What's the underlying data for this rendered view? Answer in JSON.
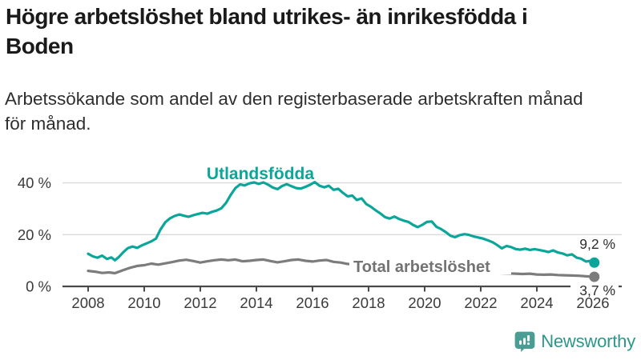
{
  "header": {
    "title": "Högre arbetslöshet bland utrikes- än inrikesfödda i\nBoden",
    "subtitle": "Arbetssökande som andel av den registerbaserade arbetskraften månad\nför månad."
  },
  "branding": {
    "logo_text": "Newsworthy",
    "logo_icon": "bar-chart-speech-bubble-icon",
    "logo_text_color": "#2d968b",
    "logo_icon_color": "#4a9d92"
  },
  "colors": {
    "teal_series": "#0ba699",
    "gray_series": "#7c7c7c",
    "gray_label": "#737373",
    "gridline": "#dadada",
    "axis": "#4a4a4a",
    "tick_text": "#3a3a3a",
    "value_label_text": "#2e2e2e"
  },
  "chart_data": {
    "type": "line",
    "title": "Högre arbetslöshet bland utrikes- än inrikesfödda i Boden",
    "subtitle": "Arbetssökande som andel av den registerbaserade arbetskraften månad för månad.",
    "xlabel": "",
    "ylabel": "",
    "grid": "horizontal",
    "legend_position": "inline-labels",
    "xlim": [
      2007.1,
      2027.1
    ],
    "ylim": [
      0,
      45
    ],
    "x_ticks": [
      2008,
      2010,
      2012,
      2014,
      2016,
      2018,
      2020,
      2022,
      2024,
      2026
    ],
    "x_tick_labels": [
      "2008",
      "2010",
      "2012",
      "2014",
      "2016",
      "2018",
      "2020",
      "2022",
      "2024",
      "2026"
    ],
    "y_ticks": [
      0,
      20,
      40
    ],
    "y_tick_labels": [
      "0 %",
      "20 %",
      "40 %"
    ],
    "series": [
      {
        "name": "Total arbetslöshet",
        "color": "#7c7c7c",
        "end_value": 3.7,
        "end_label": "3,7 %",
        "points": [
          [
            2008.0,
            6.0
          ],
          [
            2008.25,
            5.7
          ],
          [
            2008.5,
            5.2
          ],
          [
            2008.75,
            5.4
          ],
          [
            2008.95,
            5.1
          ],
          [
            2009.08,
            5.6
          ],
          [
            2009.25,
            6.3
          ],
          [
            2009.5,
            7.2
          ],
          [
            2009.75,
            7.9
          ],
          [
            2010.0,
            8.2
          ],
          [
            2010.25,
            8.8
          ],
          [
            2010.5,
            8.4
          ],
          [
            2010.75,
            8.9
          ],
          [
            2011.0,
            9.4
          ],
          [
            2011.25,
            10.0
          ],
          [
            2011.5,
            10.3
          ],
          [
            2011.75,
            9.8
          ],
          [
            2012.0,
            9.2
          ],
          [
            2012.25,
            9.7
          ],
          [
            2012.5,
            10.1
          ],
          [
            2012.75,
            10.4
          ],
          [
            2013.0,
            10.1
          ],
          [
            2013.25,
            10.4
          ],
          [
            2013.5,
            9.7
          ],
          [
            2013.75,
            9.9
          ],
          [
            2014.0,
            10.2
          ],
          [
            2014.25,
            10.4
          ],
          [
            2014.5,
            9.8
          ],
          [
            2014.75,
            9.3
          ],
          [
            2015.0,
            9.7
          ],
          [
            2015.25,
            10.2
          ],
          [
            2015.5,
            10.4
          ],
          [
            2015.75,
            9.9
          ],
          [
            2016.0,
            9.6
          ],
          [
            2016.25,
            10.0
          ],
          [
            2016.5,
            10.2
          ],
          [
            2016.75,
            9.5
          ],
          [
            2017.0,
            9.2
          ],
          [
            2017.25,
            8.7
          ],
          [
            2017.5,
            8.4
          ],
          [
            2017.75,
            8.7
          ],
          [
            2018.0,
            8.3
          ],
          [
            2018.25,
            8.0
          ],
          [
            2018.5,
            7.7
          ],
          [
            2018.75,
            7.4
          ],
          [
            2019.0,
            7.2
          ],
          [
            2019.25,
            7.0
          ],
          [
            2019.5,
            6.9
          ],
          [
            2019.75,
            7.1
          ],
          [
            2020.0,
            7.6
          ],
          [
            2020.25,
            8.1
          ],
          [
            2020.5,
            7.8
          ],
          [
            2020.75,
            7.4
          ],
          [
            2021.0,
            7.0
          ],
          [
            2021.25,
            6.6
          ],
          [
            2021.5,
            6.2
          ],
          [
            2021.75,
            5.9
          ],
          [
            2022.0,
            5.6
          ],
          [
            2022.25,
            5.4
          ],
          [
            2022.5,
            5.2
          ],
          [
            2022.75,
            5.1
          ],
          [
            2023.0,
            5.0
          ],
          [
            2023.25,
            4.9
          ],
          [
            2023.5,
            4.8
          ],
          [
            2023.75,
            4.9
          ],
          [
            2024.0,
            4.6
          ],
          [
            2024.25,
            4.5
          ],
          [
            2024.5,
            4.6
          ],
          [
            2024.75,
            4.4
          ],
          [
            2025.0,
            4.3
          ],
          [
            2025.25,
            4.2
          ],
          [
            2025.5,
            4.1
          ],
          [
            2025.75,
            3.9
          ],
          [
            2026.05,
            3.7
          ]
        ]
      },
      {
        "name": "Utlandsfödda",
        "color": "#0ba699",
        "end_value": 9.2,
        "end_label": "9,2 %",
        "points": [
          [
            2008.0,
            12.6
          ],
          [
            2008.17,
            11.6
          ],
          [
            2008.33,
            11.1
          ],
          [
            2008.5,
            11.9
          ],
          [
            2008.67,
            10.6
          ],
          [
            2008.83,
            11.2
          ],
          [
            2008.95,
            10.1
          ],
          [
            2009.08,
            11.2
          ],
          [
            2009.25,
            13.2
          ],
          [
            2009.42,
            14.8
          ],
          [
            2009.58,
            15.4
          ],
          [
            2009.75,
            14.9
          ],
          [
            2009.92,
            15.9
          ],
          [
            2010.08,
            16.6
          ],
          [
            2010.25,
            17.4
          ],
          [
            2010.42,
            18.5
          ],
          [
            2010.58,
            22.0
          ],
          [
            2010.75,
            24.8
          ],
          [
            2010.92,
            26.3
          ],
          [
            2011.08,
            27.2
          ],
          [
            2011.25,
            27.8
          ],
          [
            2011.42,
            27.3
          ],
          [
            2011.58,
            26.9
          ],
          [
            2011.75,
            27.5
          ],
          [
            2011.92,
            28.0
          ],
          [
            2012.08,
            28.4
          ],
          [
            2012.25,
            28.1
          ],
          [
            2012.42,
            28.8
          ],
          [
            2012.58,
            29.3
          ],
          [
            2012.75,
            30.2
          ],
          [
            2012.92,
            32.3
          ],
          [
            2013.08,
            35.3
          ],
          [
            2013.25,
            38.0
          ],
          [
            2013.42,
            39.4
          ],
          [
            2013.58,
            39.0
          ],
          [
            2013.75,
            39.8
          ],
          [
            2013.92,
            40.2
          ],
          [
            2014.08,
            39.6
          ],
          [
            2014.25,
            40.2
          ],
          [
            2014.42,
            39.3
          ],
          [
            2014.58,
            38.2
          ],
          [
            2014.75,
            37.6
          ],
          [
            2014.92,
            38.8
          ],
          [
            2015.08,
            39.5
          ],
          [
            2015.25,
            38.7
          ],
          [
            2015.42,
            38.0
          ],
          [
            2015.58,
            37.8
          ],
          [
            2015.75,
            38.5
          ],
          [
            2015.92,
            39.3
          ],
          [
            2016.08,
            40.3
          ],
          [
            2016.25,
            38.9
          ],
          [
            2016.42,
            38.3
          ],
          [
            2016.58,
            38.9
          ],
          [
            2016.75,
            37.3
          ],
          [
            2016.92,
            37.7
          ],
          [
            2017.08,
            36.2
          ],
          [
            2017.25,
            34.8
          ],
          [
            2017.42,
            35.1
          ],
          [
            2017.58,
            33.4
          ],
          [
            2017.75,
            34.0
          ],
          [
            2017.92,
            31.8
          ],
          [
            2018.08,
            30.8
          ],
          [
            2018.25,
            29.4
          ],
          [
            2018.42,
            28.2
          ],
          [
            2018.58,
            26.8
          ],
          [
            2018.75,
            26.2
          ],
          [
            2018.92,
            27.0
          ],
          [
            2019.08,
            26.1
          ],
          [
            2019.25,
            25.4
          ],
          [
            2019.42,
            24.9
          ],
          [
            2019.58,
            23.8
          ],
          [
            2019.75,
            22.9
          ],
          [
            2019.92,
            23.8
          ],
          [
            2020.08,
            24.9
          ],
          [
            2020.25,
            25.1
          ],
          [
            2020.42,
            23.0
          ],
          [
            2020.58,
            22.2
          ],
          [
            2020.75,
            21.0
          ],
          [
            2020.92,
            19.6
          ],
          [
            2021.08,
            19.0
          ],
          [
            2021.25,
            19.8
          ],
          [
            2021.42,
            20.2
          ],
          [
            2021.58,
            19.9
          ],
          [
            2021.75,
            19.3
          ],
          [
            2021.92,
            18.9
          ],
          [
            2022.08,
            18.5
          ],
          [
            2022.25,
            17.8
          ],
          [
            2022.42,
            17.1
          ],
          [
            2022.58,
            16.0
          ],
          [
            2022.75,
            14.7
          ],
          [
            2022.92,
            15.6
          ],
          [
            2023.08,
            15.2
          ],
          [
            2023.25,
            14.4
          ],
          [
            2023.42,
            14.2
          ],
          [
            2023.58,
            14.6
          ],
          [
            2023.75,
            14.1
          ],
          [
            2023.92,
            14.4
          ],
          [
            2024.08,
            14.1
          ],
          [
            2024.25,
            13.7
          ],
          [
            2024.42,
            13.3
          ],
          [
            2024.58,
            13.9
          ],
          [
            2024.75,
            13.1
          ],
          [
            2024.92,
            12.7
          ],
          [
            2025.08,
            12.0
          ],
          [
            2025.25,
            12.4
          ],
          [
            2025.42,
            11.1
          ],
          [
            2025.58,
            10.7
          ],
          [
            2025.75,
            9.6
          ],
          [
            2025.92,
            9.9
          ],
          [
            2026.05,
            9.2
          ]
        ]
      }
    ]
  }
}
